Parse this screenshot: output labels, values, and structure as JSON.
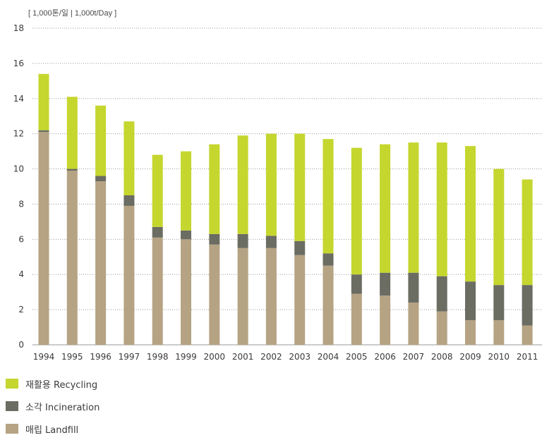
{
  "chart_data": {
    "type": "bar",
    "stacked": true,
    "unit_label": "[ 1,000톤/일 | 1,000t/Day ]",
    "ylim": [
      0,
      18
    ],
    "yticks": [
      0,
      2,
      4,
      6,
      8,
      10,
      12,
      14,
      16,
      18
    ],
    "grid": true,
    "legend_position": "bottom-left",
    "categories": [
      "1994",
      "1995",
      "1996",
      "1997",
      "1998",
      "1999",
      "2000",
      "2001",
      "2002",
      "2003",
      "2004",
      "2005",
      "2006",
      "2007",
      "2008",
      "2009",
      "2010",
      "2011"
    ],
    "series": [
      {
        "name": "매립 Landfill",
        "key": "landfill",
        "color": "#b5a383",
        "values": [
          12.1,
          9.9,
          9.3,
          7.9,
          6.1,
          6.0,
          5.7,
          5.5,
          5.5,
          5.1,
          4.5,
          2.9,
          2.8,
          2.4,
          1.9,
          1.4,
          1.4,
          1.1
        ]
      },
      {
        "name": "소각 Incineration",
        "key": "incineration",
        "color": "#6b6c62",
        "values": [
          0.1,
          0.1,
          0.3,
          0.6,
          0.6,
          0.5,
          0.6,
          0.8,
          0.7,
          0.8,
          0.7,
          1.1,
          1.3,
          1.7,
          2.0,
          2.2,
          2.0,
          2.3
        ]
      },
      {
        "name": "재활용 Recycling",
        "key": "recycling",
        "color": "#c5d62e",
        "values": [
          3.2,
          4.1,
          4.0,
          4.2,
          4.1,
          4.5,
          5.1,
          5.6,
          5.8,
          6.1,
          6.5,
          7.2,
          7.3,
          7.4,
          7.6,
          7.7,
          6.6,
          6.0
        ]
      }
    ]
  },
  "legend": [
    {
      "label": "재활용  Recycling",
      "color": "#c5d62e"
    },
    {
      "label": "소각  Incineration",
      "color": "#6b6c62"
    },
    {
      "label": "매립  Landfill",
      "color": "#b5a383"
    }
  ]
}
